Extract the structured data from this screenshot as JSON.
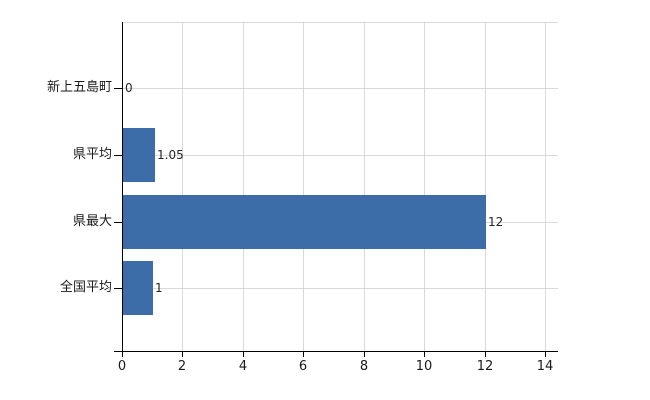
{
  "chart_data": {
    "type": "bar",
    "orientation": "horizontal",
    "title": "",
    "xlabel": "",
    "ylabel": "",
    "categories": [
      "新上五島町",
      "県平均",
      "県最大",
      "全国平均"
    ],
    "values": [
      0,
      1.05,
      12,
      1
    ],
    "value_labels": [
      "0",
      "1.05",
      "12",
      "1"
    ],
    "x_ticks": [
      0,
      2,
      4,
      6,
      8,
      10,
      12,
      14
    ],
    "x_tick_labels": [
      "0",
      "2",
      "4",
      "6",
      "8",
      "10",
      "12",
      "14"
    ],
    "xlim": [
      0,
      14.4
    ],
    "grid": true,
    "legend": false,
    "colors": {
      "bar": "#3d6da9",
      "grid": "#d9d9d9",
      "axis": "#000000",
      "category_label": "#1a1a1a",
      "tick_label": "#1a1a1a",
      "value_label": "#262626"
    }
  }
}
